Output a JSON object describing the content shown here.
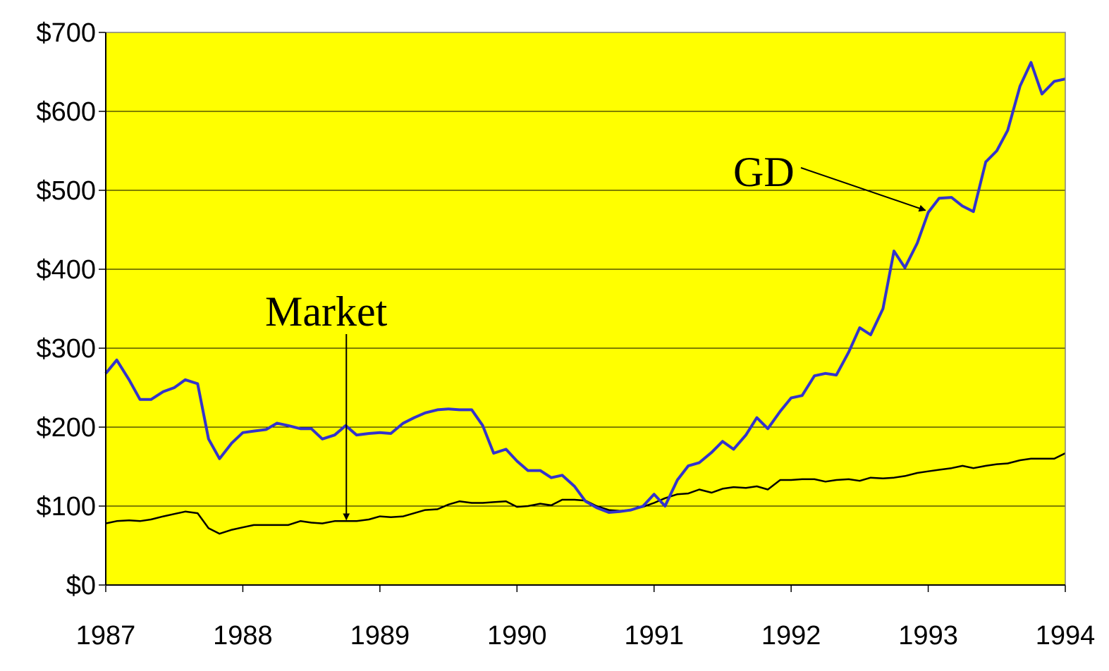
{
  "chart_data": {
    "type": "line",
    "title": "",
    "xlabel": "",
    "ylabel": "",
    "xlim": [
      1987,
      1994
    ],
    "ylim": [
      0,
      700
    ],
    "grid": true,
    "colors": {
      "background": "#ffff00",
      "gd": "#3333cc",
      "market": "#000000"
    },
    "x_ticks": [
      "1987",
      "1988",
      "1989",
      "1990",
      "1991",
      "1992",
      "1993",
      "1994"
    ],
    "y_ticks": [
      "$0",
      "$100",
      "$200",
      "$300",
      "$400",
      "$500",
      "$600",
      "$700"
    ],
    "y_tick_values": [
      0,
      100,
      200,
      300,
      400,
      500,
      600,
      700
    ],
    "series": [
      {
        "name": "GD",
        "color": "#3333cc",
        "x": [
          1987.0,
          1987.08,
          1987.17,
          1987.25,
          1987.33,
          1987.42,
          1987.5,
          1987.58,
          1987.67,
          1987.75,
          1987.83,
          1987.92,
          1988.0,
          1988.08,
          1988.17,
          1988.25,
          1988.33,
          1988.42,
          1988.5,
          1988.58,
          1988.67,
          1988.75,
          1988.83,
          1988.92,
          1989.0,
          1989.08,
          1989.17,
          1989.25,
          1989.33,
          1989.42,
          1989.5,
          1989.58,
          1989.67,
          1989.75,
          1989.83,
          1989.92,
          1990.0,
          1990.08,
          1990.17,
          1990.25,
          1990.33,
          1990.42,
          1990.5,
          1990.58,
          1990.67,
          1990.75,
          1990.83,
          1990.92,
          1991.0,
          1991.08,
          1991.17,
          1991.25,
          1991.33,
          1991.42,
          1991.5,
          1991.58,
          1991.67,
          1991.75,
          1991.83,
          1991.92,
          1992.0,
          1992.08,
          1992.17,
          1992.25,
          1992.33,
          1992.42,
          1992.5,
          1992.58,
          1992.67,
          1992.75,
          1992.83,
          1992.92,
          1993.0,
          1993.08,
          1993.17,
          1993.25,
          1993.33,
          1993.42,
          1993.5,
          1993.58,
          1993.67,
          1993.75,
          1993.83,
          1993.92,
          1994.0
        ],
        "values": [
          268,
          285,
          260,
          235,
          235,
          245,
          250,
          260,
          255,
          185,
          160,
          180,
          193,
          195,
          197,
          205,
          202,
          198,
          198,
          185,
          190,
          202,
          190,
          192,
          193,
          192,
          205,
          212,
          218,
          222,
          223,
          222,
          222,
          202,
          167,
          172,
          157,
          145,
          145,
          136,
          139,
          125,
          106,
          98,
          92,
          93,
          95,
          100,
          115,
          100,
          133,
          151,
          155,
          168,
          182,
          172,
          190,
          212,
          198,
          220,
          237,
          240,
          265,
          268,
          266,
          295,
          326,
          317,
          350,
          423,
          402,
          433,
          472,
          490,
          491,
          480,
          473,
          536,
          550,
          576,
          632,
          662,
          622,
          638,
          641
        ]
      },
      {
        "name": "Market",
        "color": "#000000",
        "x": [
          1987.0,
          1987.08,
          1987.17,
          1987.25,
          1987.33,
          1987.42,
          1987.5,
          1987.58,
          1987.67,
          1987.75,
          1987.83,
          1987.92,
          1988.0,
          1988.08,
          1988.17,
          1988.25,
          1988.33,
          1988.42,
          1988.5,
          1988.58,
          1988.67,
          1988.75,
          1988.83,
          1988.92,
          1989.0,
          1989.08,
          1989.17,
          1989.25,
          1989.33,
          1989.42,
          1989.5,
          1989.58,
          1989.67,
          1989.75,
          1989.83,
          1989.92,
          1990.0,
          1990.08,
          1990.17,
          1990.25,
          1990.33,
          1990.42,
          1990.5,
          1990.58,
          1990.67,
          1990.75,
          1990.83,
          1990.92,
          1991.0,
          1991.08,
          1991.17,
          1991.25,
          1991.33,
          1991.42,
          1991.5,
          1991.58,
          1991.67,
          1991.75,
          1991.83,
          1991.92,
          1992.0,
          1992.08,
          1992.17,
          1992.25,
          1992.33,
          1992.42,
          1992.5,
          1992.58,
          1992.67,
          1992.75,
          1992.83,
          1992.92,
          1993.0,
          1993.08,
          1993.17,
          1993.25,
          1993.33,
          1993.42,
          1993.5,
          1993.58,
          1993.67,
          1993.75,
          1993.83,
          1993.92,
          1994.0
        ],
        "values": [
          78,
          81,
          82,
          81,
          83,
          87,
          90,
          93,
          91,
          72,
          65,
          70,
          73,
          76,
          76,
          76,
          76,
          81,
          79,
          78,
          81,
          81,
          81,
          83,
          87,
          86,
          87,
          91,
          95,
          96,
          102,
          106,
          104,
          104,
          105,
          106,
          99,
          100,
          103,
          101,
          108,
          108,
          107,
          100,
          95,
          94,
          95,
          99,
          104,
          110,
          115,
          116,
          121,
          117,
          122,
          124,
          123,
          125,
          121,
          133,
          133,
          134,
          134,
          131,
          133,
          134,
          132,
          136,
          135,
          136,
          138,
          142,
          144,
          146,
          148,
          151,
          148,
          151,
          153,
          154,
          158,
          160,
          160,
          160,
          167
        ]
      }
    ],
    "annotations": [
      {
        "label": "GD",
        "target_x": 1993.0,
        "target_y": 480
      },
      {
        "label": "Market",
        "target_x": 1988.75,
        "target_y": 81
      }
    ]
  }
}
